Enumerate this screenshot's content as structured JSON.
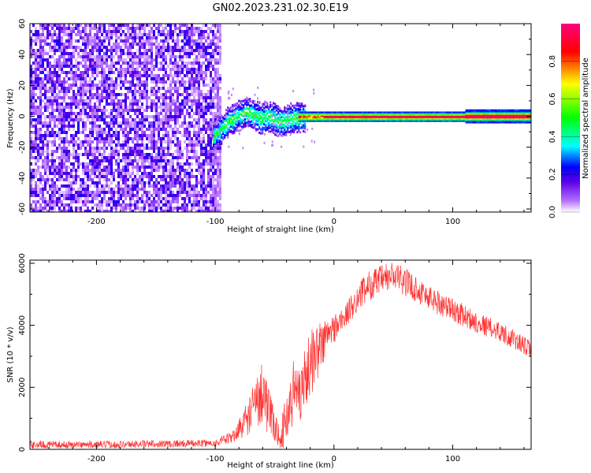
{
  "figure_title": "GN02.2023.231.02.30.E19",
  "chart_data": [
    {
      "type": "heatmap",
      "xlabel": "Height of straight line (km)",
      "ylabel": "Frequency (Hz)",
      "xlim": [
        -256,
        166
      ],
      "ylim": [
        -62,
        60
      ],
      "xticks": [
        -200,
        -100,
        0,
        100
      ],
      "xtick_labels": [
        "-200",
        "-100",
        "0",
        "100"
      ],
      "yticks": [
        -60,
        -40,
        -20,
        0,
        20,
        40,
        60
      ],
      "ytick_labels": [
        "-60",
        "-40",
        "-20",
        "0",
        "20",
        "40",
        "60"
      ],
      "colorbar": {
        "label": "Normalized spectral amplitude",
        "range": [
          0,
          1
        ],
        "ticks": [
          0.0,
          0.2,
          0.4,
          0.6,
          0.8
        ],
        "tick_labels": [
          "0.0",
          "0.2",
          "0.4",
          "0.6",
          "0.8"
        ],
        "colormap": [
          "#ffffff",
          "#b46eff",
          "#5a00e6",
          "#0000ff",
          "#00ffff",
          "#00ff00",
          "#ffff00",
          "#ff0000",
          "#ff0080"
        ]
      },
      "regions": [
        {
          "x_range": [
            -256,
            -95
          ],
          "freq_range": [
            -62,
            60
          ],
          "level": "0.1-0.3"
        },
        {
          "x_range": [
            -100,
            -30
          ],
          "freq_center": [
            -12,
            3,
            -3,
            -2
          ],
          "level": "0.3-0.5"
        },
        {
          "x_range": [
            -30,
            166
          ],
          "freq_center": 0,
          "level": "0.9-1.0"
        }
      ]
    },
    {
      "type": "line",
      "xlabel": "Height of straight line (km)",
      "ylabel": "SNR (10 * v/v)",
      "xlim": [
        -256,
        166
      ],
      "ylim": [
        0,
        6100
      ],
      "xticks": [
        -200,
        -100,
        0,
        100
      ],
      "xtick_labels": [
        "-200",
        "-100",
        "0",
        "100"
      ],
      "yticks": [
        0,
        2000,
        4000,
        6000
      ],
      "ytick_labels": [
        "0",
        "2000",
        "4000",
        "6000"
      ],
      "line_color": "#ff3333",
      "envelope": {
        "x": [
          -256,
          -200,
          -150,
          -100,
          -85,
          -75,
          -65,
          -60,
          -55,
          -50,
          -45,
          -40,
          -35,
          -30,
          -25,
          -20,
          -15,
          -10,
          -5,
          0,
          10,
          20,
          30,
          40,
          50,
          60,
          80,
          100,
          120,
          140,
          166
        ],
        "mean": [
          150,
          150,
          180,
          200,
          400,
          900,
          1500,
          2000,
          1200,
          700,
          400,
          1000,
          1800,
          1900,
          2200,
          2800,
          3100,
          3400,
          3700,
          3900,
          4300,
          4900,
          5300,
          5450,
          5600,
          5400,
          4900,
          4500,
          4100,
          3800,
          3200
        ],
        "spread": [
          120,
          120,
          120,
          120,
          200,
          500,
          900,
          1100,
          800,
          500,
          400,
          900,
          1200,
          1200,
          1000,
          1100,
          1000,
          800,
          600,
          500,
          400,
          450,
          500,
          500,
          500,
          450,
          420,
          380,
          350,
          320,
          300
        ]
      }
    }
  ]
}
